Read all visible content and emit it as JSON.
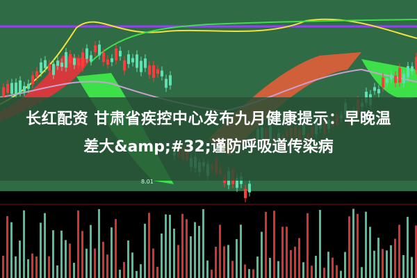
{
  "title": {
    "line1": "长红配资 甘肃省疾控中心发布九月健康提示：早晚温",
    "line2": "差大&amp;#32;谨防呼吸道传染病"
  },
  "chart_annotation": "8.01",
  "colors": {
    "background": "#000000",
    "overlay": "#264e34",
    "up_candle": "#ff3b3b",
    "down_candle": "#5fe0b0",
    "ribbon_up": "#e8343a",
    "ribbon_down": "#3ee04a",
    "line_purple": "#9a3cff",
    "line_yellow": "#f2e23a",
    "line_green": "#3ee04a"
  }
}
